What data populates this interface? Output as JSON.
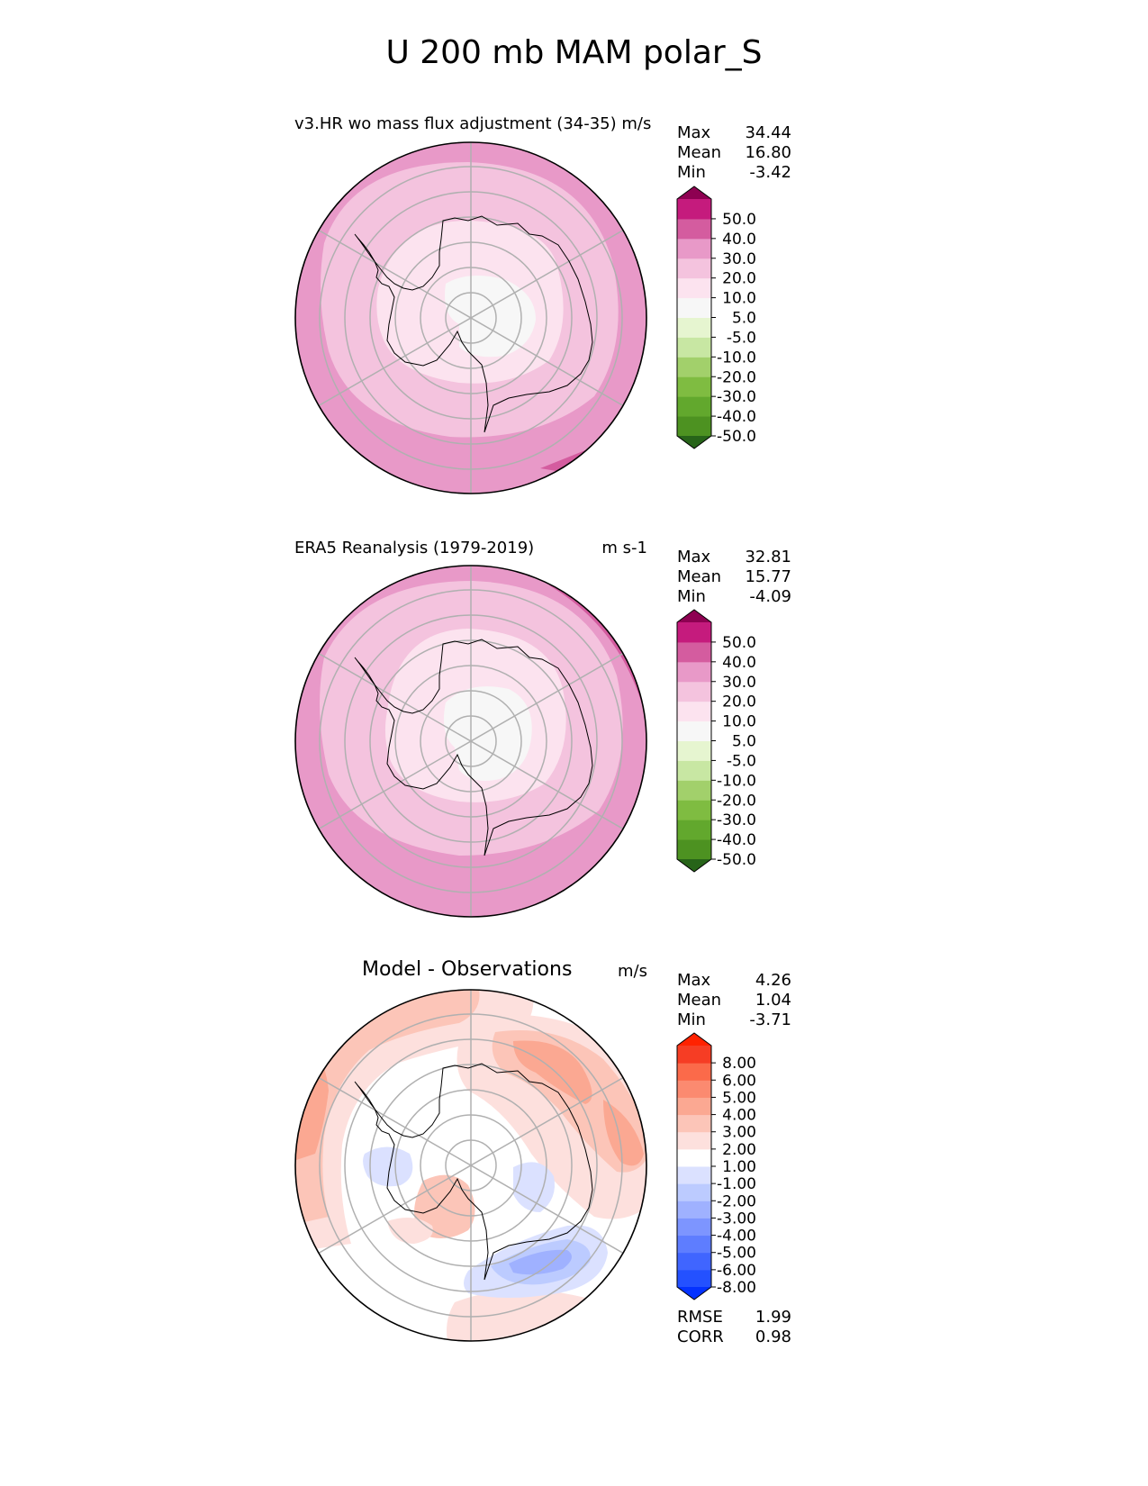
{
  "figure_title": "U 200 mb MAM polar_S",
  "stat_labels": {
    "max": "Max",
    "mean": "Mean",
    "min": "Min",
    "rmse": "RMSE",
    "corr": "CORR"
  },
  "panels": [
    {
      "title": "v3.HR wo mass flux adjustment (34-35)",
      "units": "m/s",
      "stats": {
        "max": "34.44",
        "mean": "16.80",
        "min": "-3.42"
      }
    },
    {
      "title": "ERA5 Reanalysis (1979-2019)",
      "units": "m s-1",
      "stats": {
        "max": "32.81",
        "mean": "15.77",
        "min": "-4.09"
      }
    },
    {
      "title": "Model - Observations",
      "units": "m/s",
      "stats": {
        "max": "4.26",
        "mean": "1.04",
        "min": "-3.71"
      },
      "metrics": {
        "rmse": "1.99",
        "corr": "0.98"
      }
    }
  ],
  "colors": {
    "main_scale": [
      "#276419",
      "#4d9221",
      "#7fbc41",
      "#b8e186",
      "#e6f5d0",
      "#f7f7f7",
      "#fde0ef",
      "#f1b6da",
      "#de77ae",
      "#c51b7d",
      "#8e0152"
    ],
    "main_scale_full": [
      "#276419",
      "#4d9221",
      "#62a82d",
      "#7fbc41",
      "#a2d06b",
      "#c8e7a3",
      "#e6f5d0",
      "#f7f7f7",
      "#f7f7f7",
      "#fce3ef",
      "#f4c3de",
      "#e899c8",
      "#d45c9f",
      "#c51b7d",
      "#8e0152"
    ],
    "diff_scale_full": [
      "#0432ff",
      "#2451ff",
      "#4065ff",
      "#5e7dff",
      "#7d95ff",
      "#9fb1ff",
      "#bccbff",
      "#dbe1ff",
      "#ffffff",
      "#fde0dd",
      "#fcc5b8",
      "#fba892",
      "#fb8a70",
      "#fb6a4a",
      "#f63d24",
      "#ff2200"
    ],
    "coast": "#000000",
    "grid": "#b0b0b0"
  },
  "chart_data": [
    {
      "type": "heatmap",
      "projection": "south-polar-stereographic",
      "title": "v3.HR wo mass flux adjustment (34-35)",
      "units": "m/s",
      "colorbar": {
        "ticks": [
          "50.0",
          "40.0",
          "30.0",
          "20.0",
          "10.0",
          "5.0",
          "-5.0",
          "-10.0",
          "-20.0",
          "-30.0",
          "-40.0",
          "-50.0"
        ],
        "extend": "both"
      },
      "field_summary": {
        "polar_cap": "-5 to 5",
        "inner_ring": "5 to 10",
        "mid_ring": "10 to 20",
        "outer_ring": "20 to 30",
        "max_region": "30 to 40 (northeast edge)"
      }
    },
    {
      "type": "heatmap",
      "projection": "south-polar-stereographic",
      "title": "ERA5 Reanalysis (1979-2019)",
      "units": "m s-1",
      "colorbar": {
        "ticks": [
          "50.0",
          "40.0",
          "30.0",
          "20.0",
          "10.0",
          "5.0",
          "-5.0",
          "-10.0",
          "-20.0",
          "-30.0",
          "-40.0",
          "-50.0"
        ],
        "extend": "both"
      },
      "field_summary": {
        "polar_cap": "-5 to 5",
        "inner_ring": "5 to 10",
        "mid_ring": "10 to 20",
        "outer_ring": "20 to 30",
        "max_region": "30 to 40 (northeast edge)"
      }
    },
    {
      "type": "heatmap",
      "projection": "south-polar-stereographic",
      "title": "Model - Observations",
      "units": "m/s",
      "colorbar": {
        "ticks": [
          "8.00",
          "6.00",
          "5.00",
          "4.00",
          "3.00",
          "2.00",
          "1.00",
          "-1.00",
          "-2.00",
          "-3.00",
          "-4.00",
          "-5.00",
          "-6.00",
          "-8.00"
        ],
        "extend": "both"
      },
      "field_summary": {
        "positive_regions": "northeast sector and western/northern rim up to 4-5",
        "negative_regions": "southeast sector down to -3 to -4, small west patch",
        "near_zero": "south and interior"
      }
    }
  ]
}
